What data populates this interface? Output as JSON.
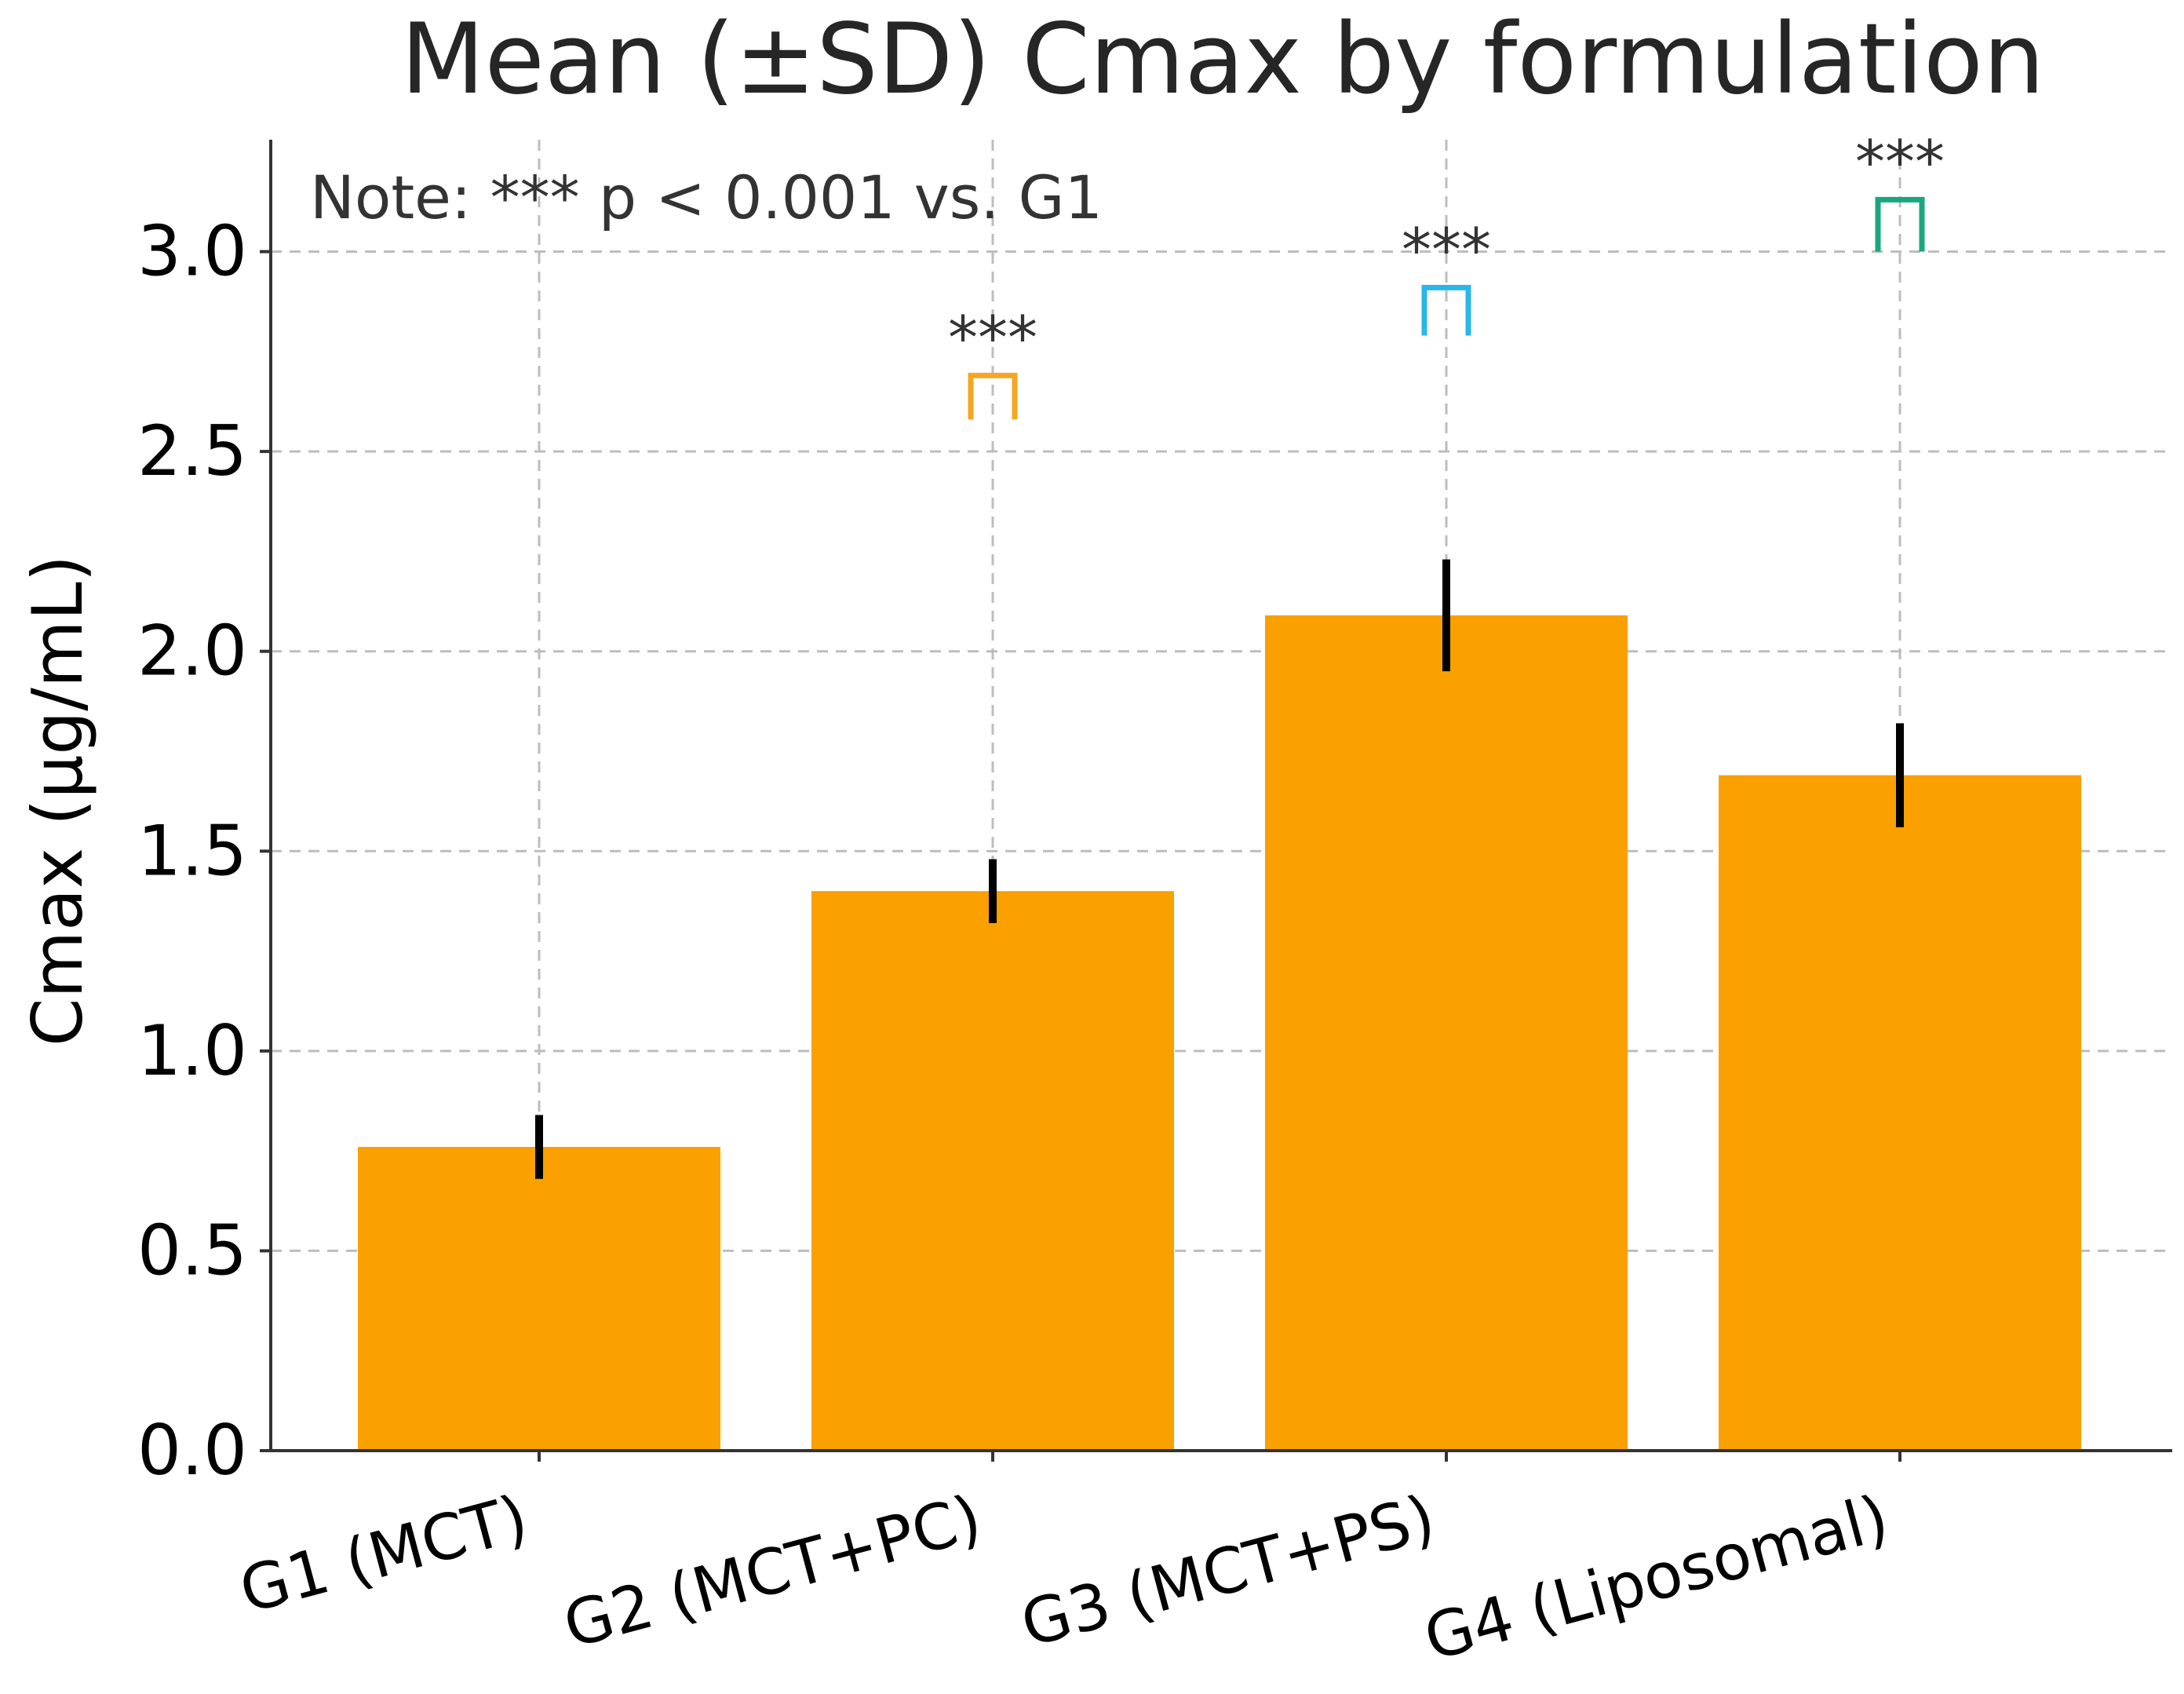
{
  "chart_data": {
    "type": "bar",
    "title": "Mean (±SD) Cmax by formulation",
    "xlabel": "",
    "ylabel": "Cmax (μg/mL)",
    "categories": [
      "G1 (MCT)",
      "G2 (MCT+PC)",
      "G3 (MCT+PS)",
      "G4 (Liposomal)"
    ],
    "values": [
      0.76,
      1.4,
      2.09,
      1.69
    ],
    "errors": [
      0.08,
      0.08,
      0.14,
      0.13
    ],
    "ylim": [
      0,
      3.28
    ],
    "yticks": [
      0.0,
      0.5,
      1.0,
      1.5,
      2.0,
      2.5,
      3.0
    ],
    "ytick_labels": [
      "0.0",
      "0.5",
      "1.0",
      "1.5",
      "2.0",
      "2.5",
      "3.0"
    ],
    "grid": true,
    "bar_color": "#FAA000",
    "error_color": "#000000",
    "note": "Note: *** p < 0.001 vs. G1",
    "annotations": [
      {
        "category": "G2 (MCT+PC)",
        "text": "***",
        "bracket_low": 2.58,
        "bracket_high": 2.69,
        "color": "#F5A623"
      },
      {
        "category": "G3 (MCT+PS)",
        "text": "***",
        "bracket_low": 2.79,
        "bracket_high": 2.91,
        "color": "#2AB7E8"
      },
      {
        "category": "G4 (Liposomal)",
        "text": "***",
        "bracket_low": 3.0,
        "bracket_high": 3.13,
        "color": "#1AA67E"
      }
    ]
  }
}
